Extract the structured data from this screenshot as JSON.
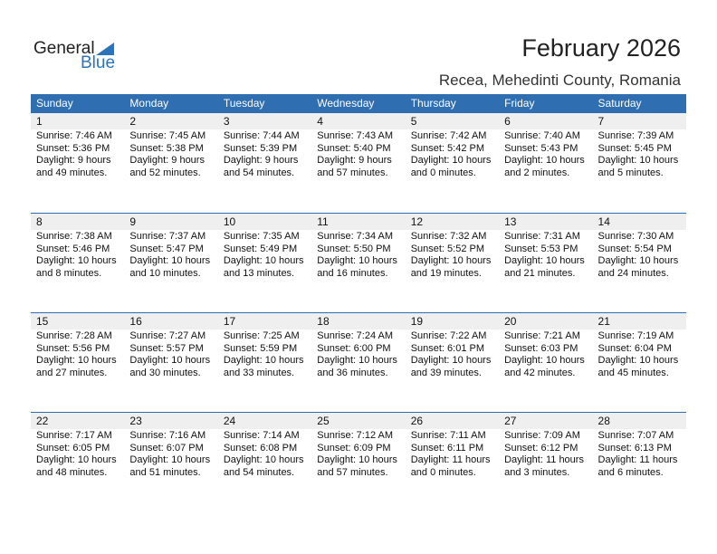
{
  "logo": {
    "line1": "General",
    "line2": "Blue",
    "color": "#2a74bb"
  },
  "title": "February 2026",
  "location": "Recea, Mehedinti County, Romania",
  "header_color": "#2f6fb1",
  "days": [
    "Sunday",
    "Monday",
    "Tuesday",
    "Wednesday",
    "Thursday",
    "Friday",
    "Saturday"
  ],
  "weeks": [
    [
      {
        "d": "1",
        "rise": "Sunrise: 7:46 AM",
        "set": "Sunset: 5:36 PM",
        "dl1": "Daylight: 9 hours",
        "dl2": "and 49 minutes."
      },
      {
        "d": "2",
        "rise": "Sunrise: 7:45 AM",
        "set": "Sunset: 5:38 PM",
        "dl1": "Daylight: 9 hours",
        "dl2": "and 52 minutes."
      },
      {
        "d": "3",
        "rise": "Sunrise: 7:44 AM",
        "set": "Sunset: 5:39 PM",
        "dl1": "Daylight: 9 hours",
        "dl2": "and 54 minutes."
      },
      {
        "d": "4",
        "rise": "Sunrise: 7:43 AM",
        "set": "Sunset: 5:40 PM",
        "dl1": "Daylight: 9 hours",
        "dl2": "and 57 minutes."
      },
      {
        "d": "5",
        "rise": "Sunrise: 7:42 AM",
        "set": "Sunset: 5:42 PM",
        "dl1": "Daylight: 10 hours",
        "dl2": "and 0 minutes."
      },
      {
        "d": "6",
        "rise": "Sunrise: 7:40 AM",
        "set": "Sunset: 5:43 PM",
        "dl1": "Daylight: 10 hours",
        "dl2": "and 2 minutes."
      },
      {
        "d": "7",
        "rise": "Sunrise: 7:39 AM",
        "set": "Sunset: 5:45 PM",
        "dl1": "Daylight: 10 hours",
        "dl2": "and 5 minutes."
      }
    ],
    [
      {
        "d": "8",
        "rise": "Sunrise: 7:38 AM",
        "set": "Sunset: 5:46 PM",
        "dl1": "Daylight: 10 hours",
        "dl2": "and 8 minutes."
      },
      {
        "d": "9",
        "rise": "Sunrise: 7:37 AM",
        "set": "Sunset: 5:47 PM",
        "dl1": "Daylight: 10 hours",
        "dl2": "and 10 minutes."
      },
      {
        "d": "10",
        "rise": "Sunrise: 7:35 AM",
        "set": "Sunset: 5:49 PM",
        "dl1": "Daylight: 10 hours",
        "dl2": "and 13 minutes."
      },
      {
        "d": "11",
        "rise": "Sunrise: 7:34 AM",
        "set": "Sunset: 5:50 PM",
        "dl1": "Daylight: 10 hours",
        "dl2": "and 16 minutes."
      },
      {
        "d": "12",
        "rise": "Sunrise: 7:32 AM",
        "set": "Sunset: 5:52 PM",
        "dl1": "Daylight: 10 hours",
        "dl2": "and 19 minutes."
      },
      {
        "d": "13",
        "rise": "Sunrise: 7:31 AM",
        "set": "Sunset: 5:53 PM",
        "dl1": "Daylight: 10 hours",
        "dl2": "and 21 minutes."
      },
      {
        "d": "14",
        "rise": "Sunrise: 7:30 AM",
        "set": "Sunset: 5:54 PM",
        "dl1": "Daylight: 10 hours",
        "dl2": "and 24 minutes."
      }
    ],
    [
      {
        "d": "15",
        "rise": "Sunrise: 7:28 AM",
        "set": "Sunset: 5:56 PM",
        "dl1": "Daylight: 10 hours",
        "dl2": "and 27 minutes."
      },
      {
        "d": "16",
        "rise": "Sunrise: 7:27 AM",
        "set": "Sunset: 5:57 PM",
        "dl1": "Daylight: 10 hours",
        "dl2": "and 30 minutes."
      },
      {
        "d": "17",
        "rise": "Sunrise: 7:25 AM",
        "set": "Sunset: 5:59 PM",
        "dl1": "Daylight: 10 hours",
        "dl2": "and 33 minutes."
      },
      {
        "d": "18",
        "rise": "Sunrise: 7:24 AM",
        "set": "Sunset: 6:00 PM",
        "dl1": "Daylight: 10 hours",
        "dl2": "and 36 minutes."
      },
      {
        "d": "19",
        "rise": "Sunrise: 7:22 AM",
        "set": "Sunset: 6:01 PM",
        "dl1": "Daylight: 10 hours",
        "dl2": "and 39 minutes."
      },
      {
        "d": "20",
        "rise": "Sunrise: 7:21 AM",
        "set": "Sunset: 6:03 PM",
        "dl1": "Daylight: 10 hours",
        "dl2": "and 42 minutes."
      },
      {
        "d": "21",
        "rise": "Sunrise: 7:19 AM",
        "set": "Sunset: 6:04 PM",
        "dl1": "Daylight: 10 hours",
        "dl2": "and 45 minutes."
      }
    ],
    [
      {
        "d": "22",
        "rise": "Sunrise: 7:17 AM",
        "set": "Sunset: 6:05 PM",
        "dl1": "Daylight: 10 hours",
        "dl2": "and 48 minutes."
      },
      {
        "d": "23",
        "rise": "Sunrise: 7:16 AM",
        "set": "Sunset: 6:07 PM",
        "dl1": "Daylight: 10 hours",
        "dl2": "and 51 minutes."
      },
      {
        "d": "24",
        "rise": "Sunrise: 7:14 AM",
        "set": "Sunset: 6:08 PM",
        "dl1": "Daylight: 10 hours",
        "dl2": "and 54 minutes."
      },
      {
        "d": "25",
        "rise": "Sunrise: 7:12 AM",
        "set": "Sunset: 6:09 PM",
        "dl1": "Daylight: 10 hours",
        "dl2": "and 57 minutes."
      },
      {
        "d": "26",
        "rise": "Sunrise: 7:11 AM",
        "set": "Sunset: 6:11 PM",
        "dl1": "Daylight: 11 hours",
        "dl2": "and 0 minutes."
      },
      {
        "d": "27",
        "rise": "Sunrise: 7:09 AM",
        "set": "Sunset: 6:12 PM",
        "dl1": "Daylight: 11 hours",
        "dl2": "and 3 minutes."
      },
      {
        "d": "28",
        "rise": "Sunrise: 7:07 AM",
        "set": "Sunset: 6:13 PM",
        "dl1": "Daylight: 11 hours",
        "dl2": "and 6 minutes."
      }
    ]
  ]
}
